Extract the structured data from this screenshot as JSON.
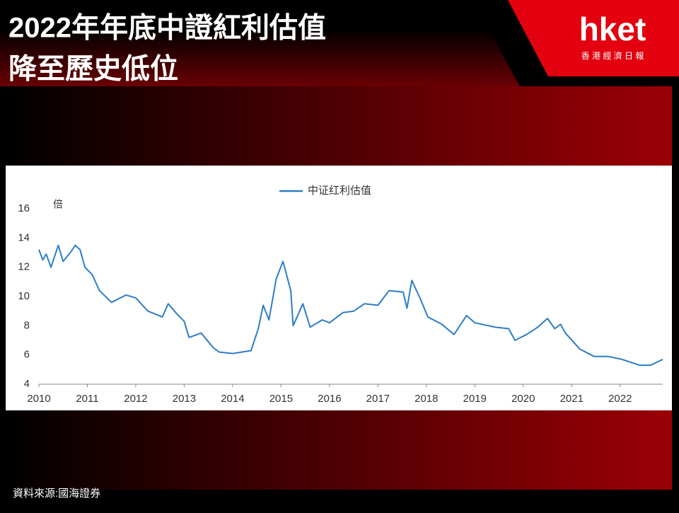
{
  "header": {
    "title_lines": [
      "2022年年底中證紅利估值",
      "降至歷史低位"
    ],
    "logo": "hket",
    "logo_subtitle": "香 港 經 濟 日 報"
  },
  "chart_data": {
    "type": "line",
    "y_unit_label": "倍",
    "x": [
      2010.0,
      2010.08,
      2010.15,
      2010.25,
      2010.4,
      2010.5,
      2010.65,
      2010.75,
      2010.85,
      2010.95,
      2011.1,
      2011.25,
      2011.5,
      2011.8,
      2012.0,
      2012.25,
      2012.55,
      2012.67,
      2012.85,
      2013.0,
      2013.1,
      2013.35,
      2013.6,
      2013.72,
      2014.0,
      2014.38,
      2014.53,
      2014.63,
      2014.75,
      2014.9,
      2015.04,
      2015.2,
      2015.25,
      2015.45,
      2015.6,
      2015.85,
      2016.0,
      2016.28,
      2016.5,
      2016.72,
      2017.0,
      2017.23,
      2017.52,
      2017.6,
      2017.7,
      2017.88,
      2018.03,
      2018.32,
      2018.57,
      2018.83,
      2019.0,
      2019.42,
      2019.7,
      2019.83,
      2020.07,
      2020.3,
      2020.5,
      2020.65,
      2020.77,
      2020.87,
      2021.17,
      2021.46,
      2021.75,
      2022.04,
      2022.4,
      2022.63,
      2022.88
    ],
    "series": [
      {
        "name": "中证红利估值",
        "color": "#2e7dc4",
        "values": [
          13.2,
          12.5,
          12.9,
          12.0,
          13.5,
          12.4,
          13.0,
          13.5,
          13.2,
          12.0,
          11.5,
          10.4,
          9.6,
          10.1,
          9.9,
          9.0,
          8.6,
          9.5,
          8.8,
          8.3,
          7.2,
          7.5,
          6.5,
          6.2,
          6.1,
          6.3,
          7.8,
          9.4,
          8.4,
          11.2,
          12.4,
          10.4,
          8.0,
          9.5,
          7.9,
          8.4,
          8.2,
          8.9,
          9.0,
          9.5,
          9.4,
          10.4,
          10.3,
          9.2,
          11.1,
          9.8,
          8.6,
          8.1,
          7.4,
          8.7,
          8.2,
          7.9,
          7.8,
          7.0,
          7.4,
          7.9,
          8.5,
          7.8,
          8.1,
          7.5,
          6.4,
          5.9,
          5.9,
          5.7,
          5.3,
          5.3,
          5.7
        ]
      }
    ],
    "xlim": [
      2010,
      2022.88
    ],
    "xticks": [
      2010,
      2011,
      2012,
      2013,
      2014,
      2015,
      2016,
      2017,
      2018,
      2019,
      2020,
      2021,
      2022
    ],
    "ylim": [
      4,
      16
    ],
    "yticks": [
      4,
      6,
      8,
      10,
      12,
      14,
      16
    ],
    "grid": false,
    "legend": "top"
  },
  "source": "資料來源:國海證券"
}
